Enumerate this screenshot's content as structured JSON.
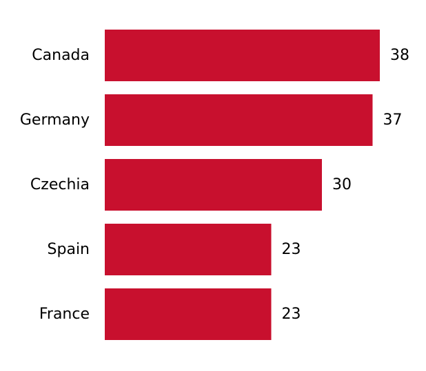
{
  "chart_data": {
    "type": "bar",
    "orientation": "horizontal",
    "categories": [
      "Canada",
      "Germany",
      "Czechia",
      "Spain",
      "France"
    ],
    "values": [
      38,
      37,
      30,
      23,
      23
    ],
    "value_labels": [
      "38",
      "37",
      "30",
      "23",
      "23"
    ],
    "title": "",
    "xlabel": "",
    "ylabel": "",
    "xlim": [
      0,
      38
    ],
    "grid": false,
    "legend": "none",
    "bar_color": "#c8102e"
  }
}
